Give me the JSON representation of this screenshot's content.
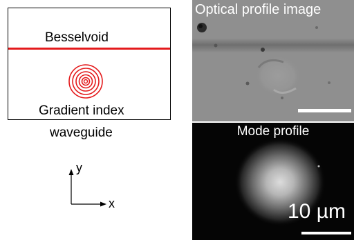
{
  "schematic": {
    "besselvoid_label": "Besselvoid",
    "gradient_label": "Gradient index",
    "waveguide_label": "waveguide",
    "line_color": "#e41a1c"
  },
  "axes": {
    "y_label": "y",
    "x_label": "x"
  },
  "optical_panel": {
    "title": "Optical profile image"
  },
  "mode_panel": {
    "title": "Mode profile",
    "scale_label": "10 µm"
  }
}
